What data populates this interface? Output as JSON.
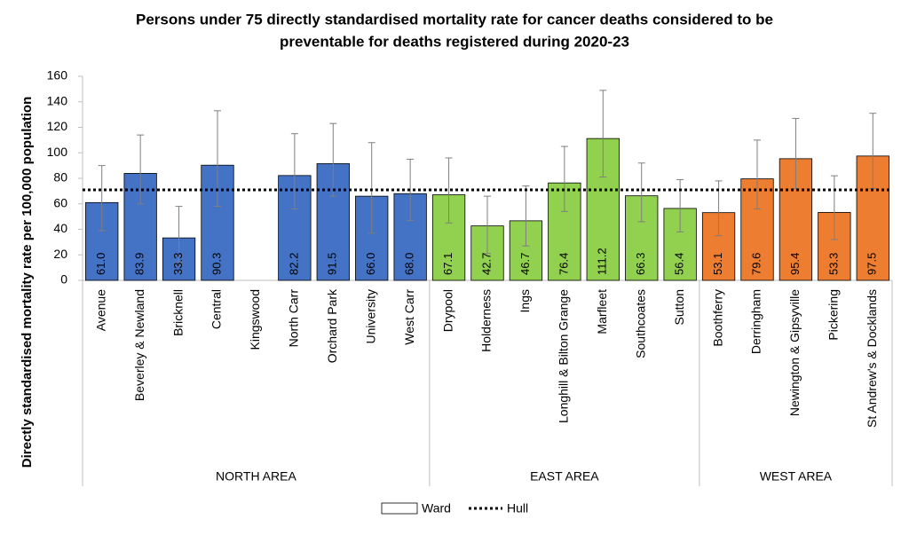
{
  "chart_data": {
    "type": "bar",
    "title": [
      "Persons under 75 directly standardised mortality rate for cancer deaths considered to be",
      "preventable for deaths registered during 2020-23"
    ],
    "y_label": "Directly standardised mortality rate per 100,000 population",
    "ylim": [
      0,
      160
    ],
    "yticks": [
      0,
      20,
      40,
      60,
      80,
      100,
      120,
      140,
      160
    ],
    "series_name": "Ward",
    "error_color": "#7f7f7f",
    "reference": {
      "name": "Hull",
      "value": 71,
      "color": "#000000"
    },
    "groups": [
      {
        "name": "NORTH AREA",
        "color": "#4472c4",
        "categories": [
          "Avenue",
          "Beverley & Newland",
          "Bricknell",
          "Central",
          "Kingswood",
          "North Carr",
          "Orchard Park",
          "University",
          "West Carr"
        ],
        "values": [
          61.0,
          83.9,
          33.3,
          90.3,
          null,
          82.2,
          91.5,
          66.0,
          68.0
        ],
        "value_labels": [
          "61.0",
          "83.9",
          "33.3",
          "90.3",
          null,
          "82.2",
          "91.5",
          "66.0",
          "68.0"
        ],
        "error_low": [
          39,
          60,
          14,
          58,
          null,
          56,
          66,
          37,
          47
        ],
        "error_high": [
          90,
          114,
          58,
          133,
          null,
          115,
          123,
          108,
          95
        ]
      },
      {
        "name": "EAST AREA",
        "color": "#92d050",
        "categories": [
          "Drypool",
          "Holderness",
          "Ings",
          "Longhill & Bilton Grange",
          "Marfleet",
          "Southcoates",
          "Sutton"
        ],
        "values": [
          67.1,
          42.7,
          46.7,
          76.4,
          111.2,
          66.3,
          56.4
        ],
        "value_labels": [
          "67.1",
          "42.7",
          "46.7",
          "76.4",
          "111.2",
          "66.3",
          "56.4"
        ],
        "error_low": [
          45,
          21,
          27,
          54,
          81,
          46,
          38
        ],
        "error_high": [
          96,
          66,
          74,
          105,
          149,
          92,
          79
        ]
      },
      {
        "name": "WEST AREA",
        "color": "#ed7d31",
        "categories": [
          "Boothferry",
          "Derringham",
          "Newington & Gipsyville",
          "Pickering",
          "St Andrew's & Docklands"
        ],
        "values": [
          53.1,
          79.6,
          95.4,
          53.3,
          97.5
        ],
        "value_labels": [
          "53.1",
          "79.6",
          "95.4",
          "53.3",
          "97.5"
        ],
        "error_low": [
          35,
          56,
          72,
          32,
          72
        ],
        "error_high": [
          78,
          110,
          127,
          82,
          131
        ]
      }
    ]
  }
}
